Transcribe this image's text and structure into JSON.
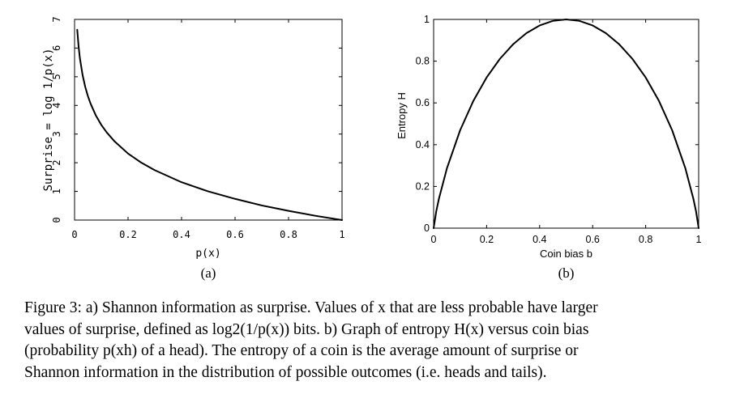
{
  "chart_data": [
    {
      "type": "line",
      "panel_label": "(a)",
      "xlabel": "p(x)",
      "ylabel": "Surprise = log 1/p(x)",
      "xlim": [
        0,
        1
      ],
      "ylim": [
        0,
        7
      ],
      "xticks": [
        "0",
        "0.2",
        "0.4",
        "0.6",
        "0.8",
        "1"
      ],
      "yticks": [
        "0",
        "1",
        "2",
        "3",
        "4",
        "5",
        "6",
        "7"
      ],
      "series": [
        {
          "x": [
            0.01,
            0.015,
            0.02,
            0.03,
            0.04,
            0.05,
            0.06,
            0.08,
            0.1,
            0.12,
            0.15,
            0.2,
            0.25,
            0.3,
            0.4,
            0.5,
            0.6,
            0.7,
            0.8,
            0.9,
            1.0
          ],
          "y": [
            6.64,
            6.06,
            5.64,
            5.06,
            4.64,
            4.32,
            4.06,
            3.64,
            3.32,
            3.06,
            2.74,
            2.32,
            2.0,
            1.74,
            1.32,
            1.0,
            0.74,
            0.51,
            0.32,
            0.15,
            0.0
          ]
        }
      ]
    },
    {
      "type": "line",
      "panel_label": "(b)",
      "xlabel": "Coin bias b",
      "ylabel": "Entropy H",
      "xlim": [
        0,
        1
      ],
      "ylim": [
        0,
        1
      ],
      "xticks": [
        "0",
        "0.2",
        "0.4",
        "0.6",
        "0.8",
        "1"
      ],
      "yticks": [
        "0",
        "0.2",
        "0.4",
        "0.6",
        "0.8",
        "1"
      ],
      "series": [
        {
          "x": [
            0.0,
            0.01,
            0.02,
            0.05,
            0.1,
            0.15,
            0.2,
            0.25,
            0.3,
            0.35,
            0.4,
            0.45,
            0.5,
            0.55,
            0.6,
            0.65,
            0.7,
            0.75,
            0.8,
            0.85,
            0.9,
            0.95,
            0.98,
            0.99,
            1.0
          ],
          "y": [
            0.0,
            0.081,
            0.141,
            0.286,
            0.469,
            0.61,
            0.722,
            0.811,
            0.881,
            0.934,
            0.971,
            0.993,
            1.0,
            0.993,
            0.971,
            0.934,
            0.881,
            0.811,
            0.722,
            0.61,
            0.469,
            0.286,
            0.141,
            0.081,
            0.0
          ]
        }
      ]
    }
  ],
  "caption": {
    "lines": [
      "Figure 3: a) Shannon information as surprise. Values of x that are less probable have larger",
      "values of surprise, defined as log2(1/p(x)) bits. b) Graph of entropy H(x) versus coin bias",
      "(probability p(xh) of a head). The entropy of a coin is the average amount of surprise or",
      "Shannon information in the distribution of possible outcomes (i.e. heads and tails)."
    ]
  }
}
